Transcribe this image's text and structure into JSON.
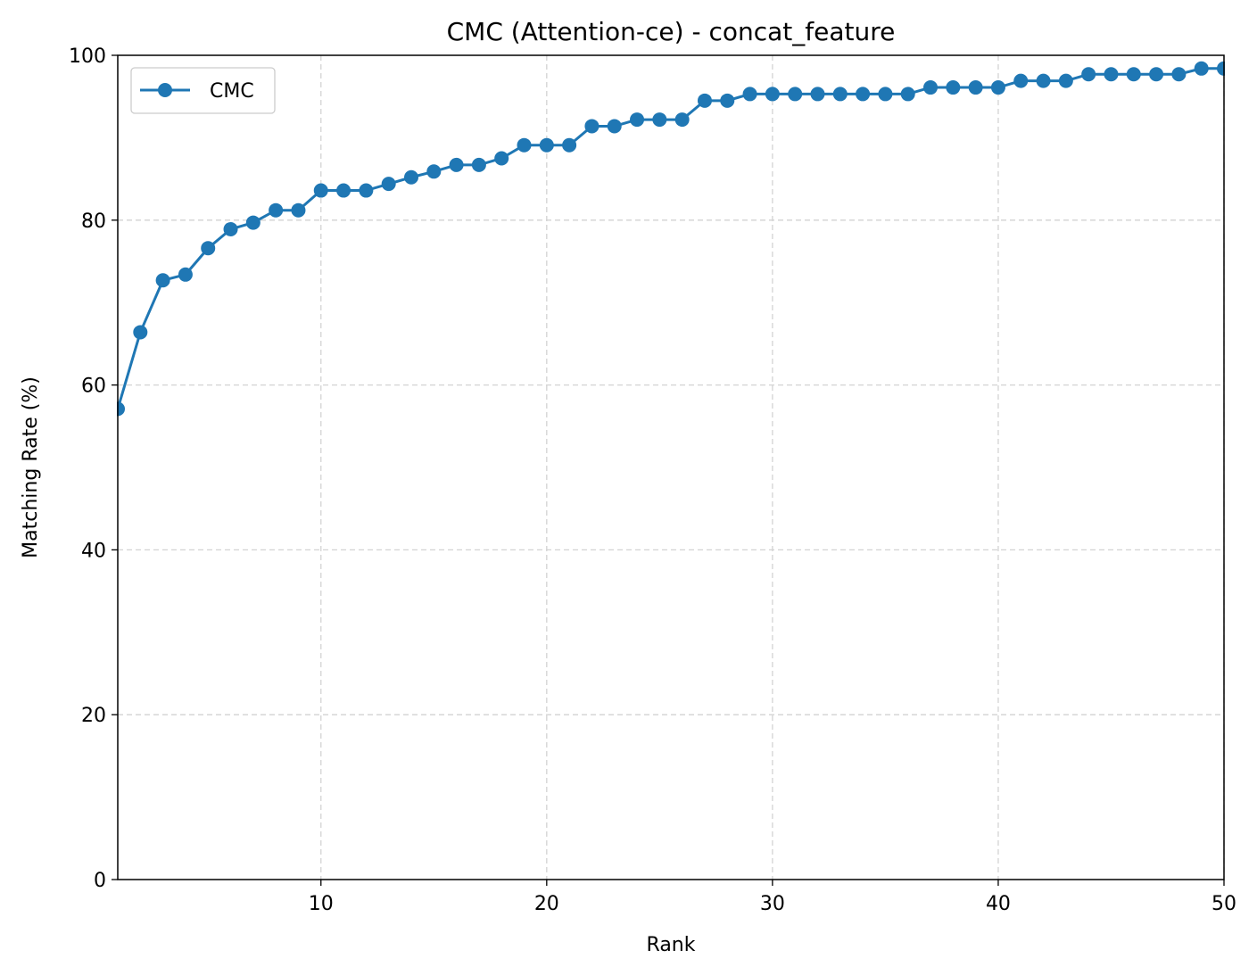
{
  "chart_data": {
    "type": "line",
    "title": "CMC (Attention-ce) - concat_feature",
    "xlabel": "Rank",
    "ylabel": "Matching Rate (%)",
    "xlim": [
      1,
      50
    ],
    "ylim": [
      0,
      100
    ],
    "xticks": [
      10,
      20,
      30,
      40,
      50
    ],
    "yticks": [
      0,
      20,
      40,
      60,
      80,
      100
    ],
    "grid": true,
    "legend_position": "top-left",
    "series": [
      {
        "name": "CMC",
        "color": "#1f77b4",
        "marker": "circle",
        "x": [
          1,
          2,
          3,
          4,
          5,
          6,
          7,
          8,
          9,
          10,
          11,
          12,
          13,
          14,
          15,
          16,
          17,
          18,
          19,
          20,
          21,
          22,
          23,
          24,
          25,
          26,
          27,
          28,
          29,
          30,
          31,
          32,
          33,
          34,
          35,
          36,
          37,
          38,
          39,
          40,
          41,
          42,
          43,
          44,
          45,
          46,
          47,
          48,
          49,
          50
        ],
        "values": [
          57.1,
          66.4,
          72.7,
          73.4,
          76.6,
          78.9,
          79.7,
          81.2,
          81.2,
          83.6,
          83.6,
          83.6,
          84.4,
          85.2,
          85.9,
          86.7,
          86.7,
          87.5,
          89.1,
          89.1,
          89.1,
          91.4,
          91.4,
          92.2,
          92.2,
          92.2,
          94.5,
          94.5,
          95.3,
          95.3,
          95.3,
          95.3,
          95.3,
          95.3,
          95.3,
          95.3,
          96.1,
          96.1,
          96.1,
          96.1,
          96.9,
          96.9,
          96.9,
          97.7,
          97.7,
          97.7,
          97.7,
          97.7,
          98.4,
          98.4
        ]
      }
    ]
  }
}
